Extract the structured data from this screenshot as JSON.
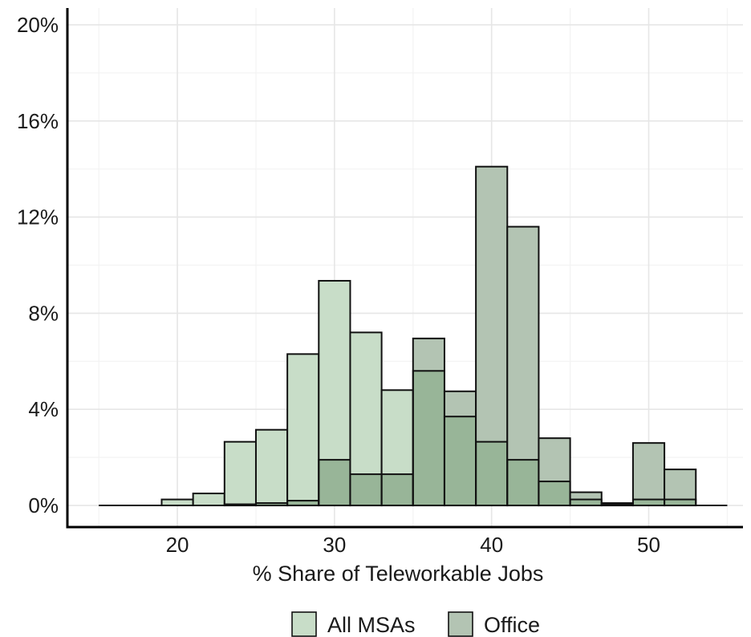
{
  "chart_data": {
    "type": "bar",
    "subtype": "overlaid-histogram",
    "title": "",
    "xlabel": "% Share of Teleworkable Jobs",
    "ylabel": "",
    "xlim": [
      13,
      56
    ],
    "ylim": [
      -0.9,
      20.7
    ],
    "x_ticks": [
      20,
      30,
      40,
      50
    ],
    "x_tick_labels": [
      "20",
      "30",
      "40",
      "50"
    ],
    "y_ticks": [
      0,
      4,
      8,
      12,
      16,
      20
    ],
    "y_tick_labels": [
      "0%",
      "4%",
      "8%",
      "12%",
      "16%",
      "20%"
    ],
    "grid": true,
    "legend_position": "bottom",
    "baseline_range": [
      15,
      55
    ],
    "bin_width": 2,
    "bin_starts": [
      19,
      21,
      23,
      25,
      27,
      29,
      31,
      33,
      35,
      37,
      39,
      41,
      43,
      45,
      47,
      49,
      51
    ],
    "series": [
      {
        "name": "All MSAs",
        "color": "#c8ddc8",
        "values": [
          0.25,
          0.5,
          2.65,
          3.15,
          6.3,
          9.35,
          7.2,
          4.8,
          5.6,
          3.7,
          2.65,
          1.9,
          1.0,
          0.25,
          0.1,
          0.25,
          0.25
        ]
      },
      {
        "name": "Office",
        "color": "#b3c4b3",
        "values": [
          0,
          0,
          0.05,
          0.1,
          0.2,
          1.9,
          1.3,
          1.3,
          6.95,
          4.75,
          14.1,
          11.6,
          2.8,
          0.55,
          0.05,
          2.6,
          1.5
        ]
      }
    ],
    "overlap_color": "#98b598"
  }
}
